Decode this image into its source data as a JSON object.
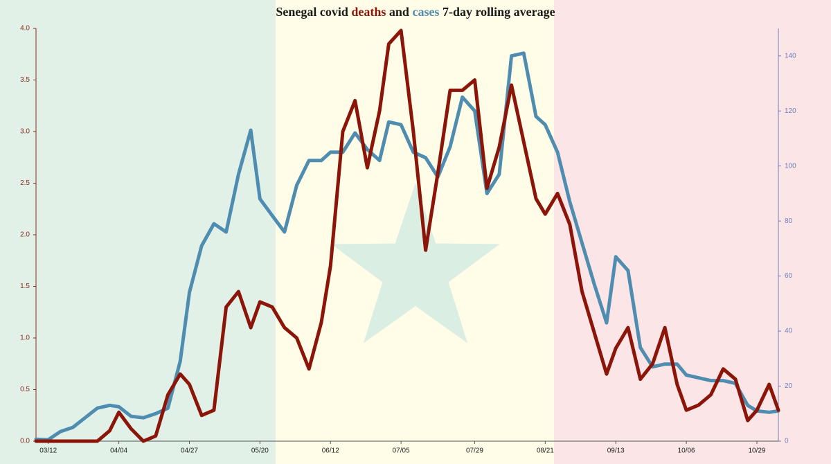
{
  "chart_data": {
    "type": "line",
    "title": {
      "prefix": "Senegal covid",
      "middle": "and",
      "suffix": "7-day rolling average"
    },
    "x": [
      "03/08",
      "03/12",
      "03/16",
      "03/20",
      "03/24",
      "03/28",
      "04/01",
      "04/04",
      "04/08",
      "04/12",
      "04/16",
      "04/20",
      "04/24",
      "04/27",
      "05/01",
      "05/05",
      "05/09",
      "05/13",
      "05/17",
      "05/20",
      "05/24",
      "05/28",
      "06/01",
      "06/05",
      "06/09",
      "06/12",
      "06/16",
      "06/20",
      "06/24",
      "06/28",
      "07/01",
      "07/05",
      "07/09",
      "07/13",
      "07/17",
      "07/21",
      "07/25",
      "07/29",
      "08/02",
      "08/06",
      "08/10",
      "08/14",
      "08/18",
      "08/21",
      "08/25",
      "08/29",
      "09/02",
      "09/06",
      "09/10",
      "09/13",
      "09/17",
      "09/21",
      "09/25",
      "09/29",
      "10/03",
      "10/06",
      "10/10",
      "10/14",
      "10/18",
      "10/22",
      "10/26",
      "10/29",
      "11/02",
      "11/05"
    ],
    "xlim": [
      "03/08",
      "11/05"
    ],
    "xticks": [
      "03/12",
      "04/04",
      "04/27",
      "05/20",
      "06/12",
      "07/05",
      "07/29",
      "08/21",
      "09/13",
      "10/06",
      "10/29"
    ],
    "series": [
      {
        "name": "deaths",
        "color": "#8a1508",
        "axis": "y",
        "values": [
          0,
          0,
          0,
          0,
          0,
          0,
          0.1,
          0.28,
          0.12,
          0,
          0.05,
          0.45,
          0.65,
          0.55,
          0.25,
          0.3,
          1.3,
          1.45,
          1.1,
          1.35,
          1.3,
          1.1,
          1.0,
          0.7,
          1.15,
          1.7,
          3.0,
          3.3,
          2.65,
          3.2,
          3.85,
          3.98,
          3.0,
          1.85,
          2.6,
          3.4,
          3.4,
          3.5,
          2.45,
          2.85,
          3.45,
          2.9,
          2.35,
          2.2,
          2.4,
          2.1,
          1.45,
          1.05,
          0.65,
          0.9,
          1.1,
          0.6,
          0.75,
          1.1,
          0.55,
          0.3,
          0.35,
          0.45,
          0.7,
          0.6,
          0.2,
          0.3,
          0.55,
          0.3
        ]
      },
      {
        "name": "cases",
        "color": "#4f8db0",
        "axis": "y2",
        "values": [
          0.7,
          0.5,
          3.5,
          5,
          8.5,
          12,
          13,
          12.5,
          9,
          8.5,
          10,
          12,
          29,
          54,
          71,
          79,
          76,
          97,
          113,
          88,
          82,
          76,
          93,
          102,
          102,
          105,
          105,
          112,
          106,
          102,
          116,
          115,
          105,
          103,
          96,
          107,
          125,
          120,
          90,
          97,
          140,
          141,
          118,
          115,
          105,
          87,
          72,
          57,
          43,
          67,
          62,
          34,
          27,
          28,
          28,
          24,
          23,
          22,
          22,
          21,
          13,
          11,
          10.5,
          11
        ]
      }
    ],
    "ylim": [
      0,
      4
    ],
    "yticks": [
      {
        "value": 0,
        "label": "0.0"
      },
      0.5,
      {
        "value": 1,
        "label": "1.0"
      },
      1.5,
      {
        "value": 2,
        "label": "2.0"
      },
      2.5,
      {
        "value": 3,
        "label": "3.0"
      },
      3.5,
      {
        "value": 4,
        "label": "4.0"
      }
    ],
    "y2lim": [
      0,
      150
    ],
    "y2ticks": [
      0,
      20,
      40,
      60,
      80,
      100,
      120,
      140
    ],
    "grid": false
  }
}
